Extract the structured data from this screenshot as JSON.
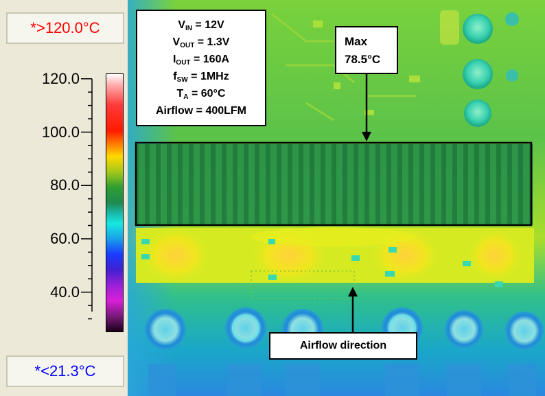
{
  "scale": {
    "max_readout": "*>120.0°C",
    "min_readout": "*<21.3°C",
    "max_color": "#ff0000",
    "min_color": "#0000ff",
    "ticks": [
      {
        "label": "120.0",
        "value": 120
      },
      {
        "label": "100.0",
        "value": 100
      },
      {
        "label": "80.0",
        "value": 80
      },
      {
        "label": "60.0",
        "value": 60
      },
      {
        "label": "40.0",
        "value": 40
      }
    ],
    "range": [
      25,
      122
    ]
  },
  "conditions": {
    "vin": {
      "main": "V",
      "sub": "IN",
      "value": " = 12V"
    },
    "vout": {
      "main": "V",
      "sub": "OUT",
      "value": " = 1.3V"
    },
    "iout": {
      "main": "I",
      "sub": "OUT",
      "value": " = 160A"
    },
    "fsw": {
      "main": "f",
      "sub": "SW",
      "value": " = 1MHz"
    },
    "ta": {
      "main": "T",
      "sub": "A",
      "value": " = 60°C"
    },
    "airflow": "Airflow = 400LFM"
  },
  "annotations": {
    "max_title": "Max",
    "max_value": "78.5°C",
    "airflow_direction": "Airflow direction"
  }
}
